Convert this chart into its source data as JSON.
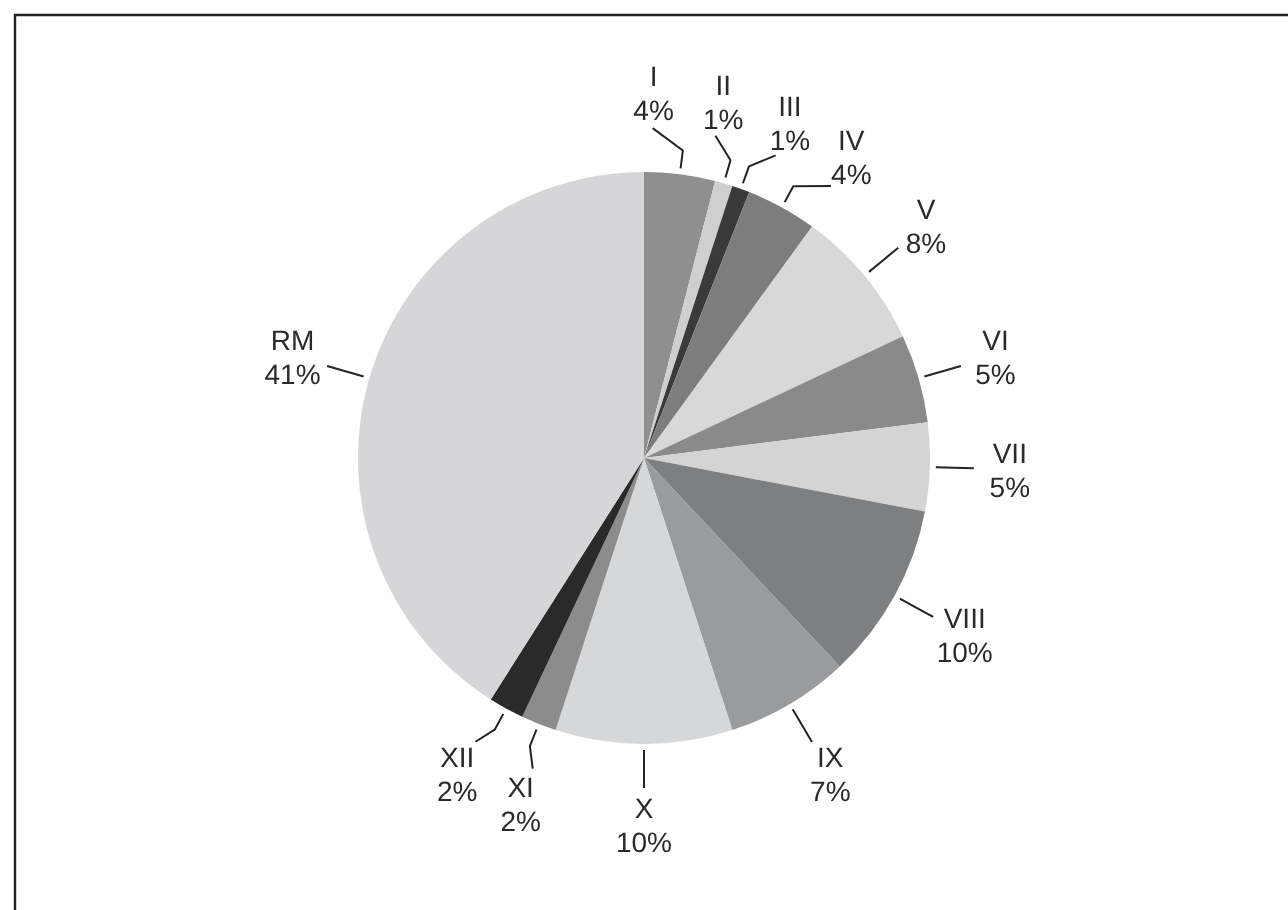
{
  "chart_data": {
    "type": "pie",
    "categories": [
      "I",
      "II",
      "III",
      "IV",
      "V",
      "VI",
      "VII",
      "VIII",
      "IX",
      "X",
      "XI",
      "XII",
      "RM"
    ],
    "values": [
      4,
      1,
      1,
      4,
      8,
      5,
      5,
      10,
      7,
      10,
      2,
      2,
      41
    ],
    "value_labels": [
      "4%",
      "1%",
      "1%",
      "4%",
      "8%",
      "5%",
      "5%",
      "10%",
      "7%",
      "10%",
      "2%",
      "2%",
      "41%"
    ],
    "colors": [
      "#8f8f8f",
      "#cfcfcf",
      "#3a3a3a",
      "#7d7d7d",
      "#d8d8d8",
      "#8a8a8a",
      "#d4d4d4",
      "#7e7f81",
      "#9a9b9d",
      "#d6d7d9",
      "#8c8c8c",
      "#2a2a2a",
      "#d6d6d8"
    ]
  }
}
